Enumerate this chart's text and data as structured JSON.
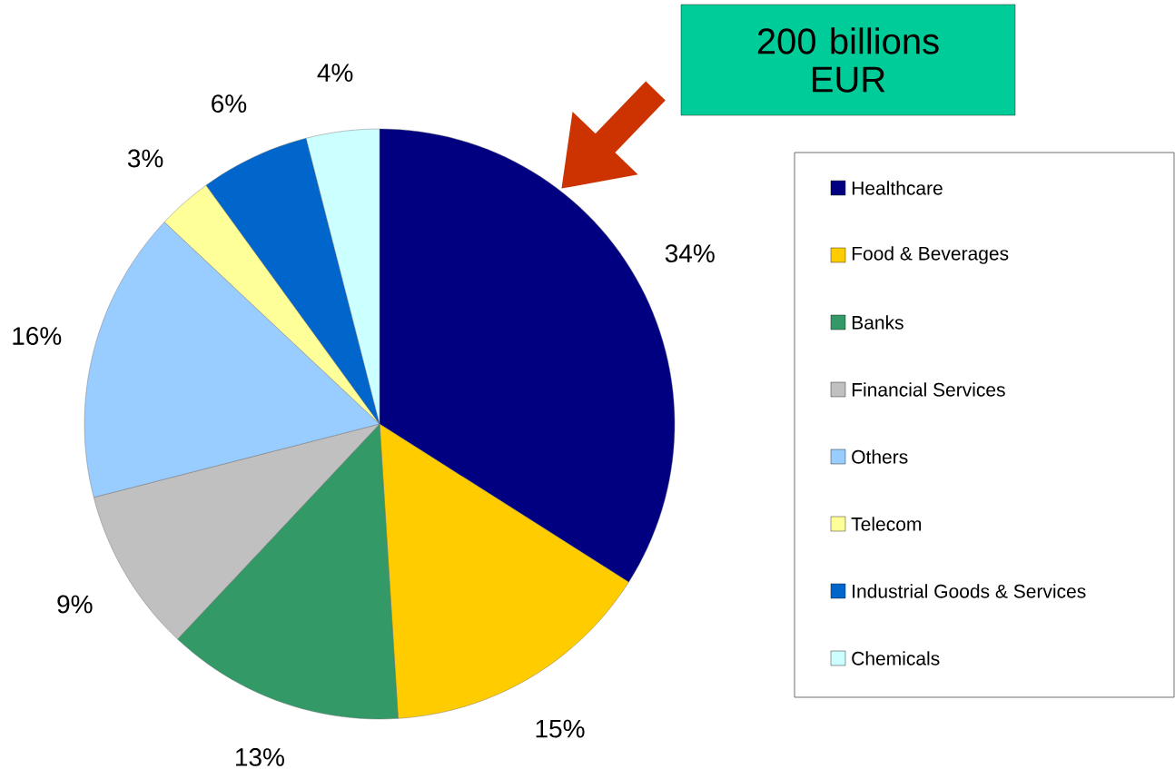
{
  "chart_data": {
    "type": "pie",
    "categories": [
      "Healthcare",
      "Food & Beverages",
      "Banks",
      "Financial Services",
      "Others",
      "Telecom",
      "Industrial Goods & Services",
      "Chemicals"
    ],
    "values": [
      34,
      15,
      13,
      9,
      16,
      3,
      6,
      4
    ],
    "value_labels": [
      "34%",
      "15%",
      "13%",
      "9%",
      "16%",
      "3%",
      "6%",
      "4%"
    ],
    "colors": [
      "#000080",
      "#ffcc00",
      "#339966",
      "#c0c0c0",
      "#99ccff",
      "#ffff99",
      "#0066cc",
      "#ccffff"
    ],
    "legend": "right",
    "annotations": [
      "200 billions EUR"
    ]
  }
}
